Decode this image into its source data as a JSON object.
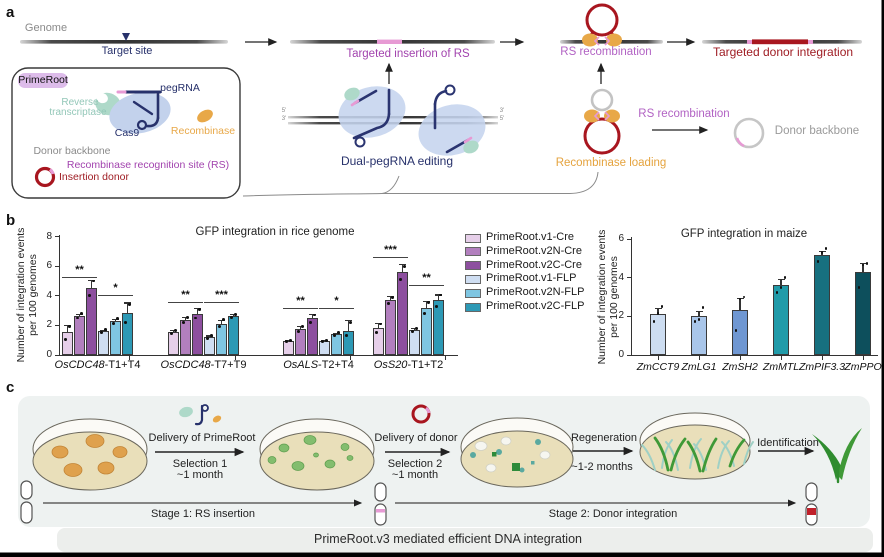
{
  "panels": {
    "a": "a",
    "b": "b",
    "c": "c"
  },
  "colors": {
    "purple": "#a243ae",
    "light_purple": "#b263c4",
    "dark_red": "#9f1d24",
    "orange": "#e5a33e",
    "teal_text": "#93c7b8",
    "navy": "#27316b",
    "gray": "#8a8a8a",
    "pink": "#e79ad4",
    "red_loop": "#a8161f"
  },
  "panel_a": {
    "genome_label": "Genome",
    "target_site": "Target site",
    "targeted_insertion": "Targeted insertion of RS",
    "dual_pegrna": "Dual-pegRNA editing",
    "rs_recombination_top": "RS recombination",
    "targeted_donor_integration": "Targeted  donor integration",
    "recombinase_loading": "Recombinase loading",
    "rs_recombination_mid": "RS recombination",
    "donor_backbone_right": "Donor backbone",
    "strand_ends": {
      "left_top": "5'",
      "left_bottom": "3'",
      "right_top": "3'",
      "right_bottom": "5'"
    },
    "primeroot_box": {
      "title": "PrimeRoot",
      "rt_line1": "Reverse",
      "rt_line2": "transcriptase",
      "pegrna": "pegRNA",
      "cas9": "Cas9",
      "recombinase": "Recombinase",
      "donor_backbone": "Donor backbone",
      "rs_site": "Recombinase recognition site (RS)",
      "insertion_donor": "Insertion donor"
    }
  },
  "chart_data": [
    {
      "type": "bar",
      "title": "GFP integration in rice genome",
      "ylabel": [
        "Number of integration events",
        "per 100 genomes"
      ],
      "ylim": [
        0,
        8
      ],
      "yticks": [
        0,
        2,
        4,
        6,
        8
      ],
      "grid": false,
      "legend_position": "right",
      "categories": [
        {
          "gene": "OsCDC48",
          "suffix": "-T1+T4"
        },
        {
          "gene": "OsCDC48",
          "suffix": "-T7+T9"
        },
        {
          "gene": "OsALS",
          "suffix": "-T2+T4"
        },
        {
          "gene": "OsS20",
          "suffix": "-T1+T2"
        }
      ],
      "series": [
        {
          "name": "PrimeRoot.v1-Cre",
          "color": "#e6cfe9",
          "values": [
            1.55,
            1.55,
            0.95,
            1.8
          ],
          "errors": [
            0.5,
            0.15,
            0.08,
            0.35
          ],
          "dots": [
            [
              1.05,
              1.95
            ],
            [
              1.45,
              1.65
            ],
            [
              0.9,
              1.0
            ],
            [
              1.5,
              2.1
            ]
          ]
        },
        {
          "name": "PrimeRoot.v2N-Cre",
          "color": "#b27fbe",
          "values": [
            2.65,
            2.35,
            1.75,
            3.7
          ],
          "errors": [
            0.15,
            0.2,
            0.2,
            0.3
          ],
          "dots": [
            [
              2.5,
              2.8
            ],
            [
              2.2,
              2.55
            ],
            [
              1.6,
              1.9
            ],
            [
              3.5,
              3.9
            ]
          ]
        },
        {
          "name": "PrimeRoot.v2C-Cre",
          "color": "#8d4f9f",
          "values": [
            4.5,
            2.75,
            2.5,
            5.6
          ],
          "errors": [
            0.55,
            0.45,
            0.3,
            0.55
          ],
          "dots": [
            [
              4.0,
              5.0
            ],
            [
              2.5,
              3.1
            ],
            [
              2.2,
              2.7
            ],
            [
              5.1,
              6.0
            ]
          ]
        },
        {
          "name": "PrimeRoot.v1-FLP",
          "color": "#cfdef2",
          "values": [
            1.6,
            1.2,
            0.95,
            1.7
          ],
          "errors": [
            0.1,
            0.12,
            0.08,
            0.15
          ],
          "dots": [
            [
              1.5,
              1.7
            ],
            [
              1.1,
              1.3
            ],
            [
              0.9,
              1.0
            ],
            [
              1.6,
              1.8
            ]
          ]
        },
        {
          "name": "PrimeRoot.v2N-FLP",
          "color": "#7fc6e2",
          "values": [
            2.3,
            2.1,
            1.4,
            3.2
          ],
          "errors": [
            0.15,
            0.25,
            0.1,
            0.45
          ],
          "dots": [
            [
              2.15,
              2.45
            ],
            [
              1.9,
              2.4
            ],
            [
              1.3,
              1.5
            ],
            [
              2.8,
              3.55
            ]
          ]
        },
        {
          "name": "PrimeRoot.v2C-FLP",
          "color": "#2d99b5",
          "values": [
            2.85,
            2.65,
            1.65,
            3.7
          ],
          "errors": [
            0.7,
            0.12,
            0.7,
            0.4
          ],
          "dots": [
            [
              2.2,
              3.4
            ],
            [
              2.55,
              2.75
            ],
            [
              1.3,
              2.2
            ],
            [
              3.3,
              4.05
            ]
          ]
        }
      ],
      "significance": [
        {
          "cat": 0,
          "half": 0,
          "label": "**",
          "y": 5.3
        },
        {
          "cat": 0,
          "half": 1,
          "label": "*",
          "y": 4.05
        },
        {
          "cat": 1,
          "half": 0,
          "label": "**",
          "y": 3.6
        },
        {
          "cat": 1,
          "half": 1,
          "label": "***",
          "y": 3.6
        },
        {
          "cat": 2,
          "half": 0,
          "label": "**",
          "y": 3.2
        },
        {
          "cat": 2,
          "half": 1,
          "label": "*",
          "y": 3.2
        },
        {
          "cat": 3,
          "half": 0,
          "label": "***",
          "y": 6.6
        },
        {
          "cat": 3,
          "half": 1,
          "label": "**",
          "y": 4.75
        }
      ]
    },
    {
      "type": "bar",
      "title": "GFP integration in maize",
      "ylabel": [
        "Number of integration events",
        "per 100 genomes"
      ],
      "ylim": [
        0,
        6
      ],
      "yticks": [
        0,
        2,
        4,
        6
      ],
      "grid": false,
      "categories": [
        "ZmCCT9",
        "ZmLG1",
        "ZmSH2",
        "ZmMTL",
        "ZmPIF3.3",
        "ZmPPO"
      ],
      "values": [
        2.1,
        2.0,
        2.35,
        3.6,
        5.15,
        4.3
      ],
      "errors": [
        0.35,
        0.3,
        0.6,
        0.35,
        0.25,
        0.45
      ],
      "dots": [
        [
          1.75,
          2.15,
          2.5
        ],
        [
          1.75,
          1.85,
          2.45
        ],
        [
          1.25,
          2.9,
          3.0
        ],
        [
          3.25,
          3.5,
          4.0
        ],
        [
          4.85,
          5.3,
          5.5
        ],
        [
          3.5,
          4.65,
          4.75
        ]
      ],
      "colors": [
        "#cdddf1",
        "#a9c6ea",
        "#6f97d2",
        "#219ba9",
        "#17707f",
        "#0d4f5c"
      ]
    }
  ],
  "panel_c": {
    "steps": [
      {
        "title": "Delivery of PrimeRoot",
        "sub1": "Selection 1",
        "sub2": "~1 month"
      },
      {
        "title": "Delivery of donor",
        "sub1": "Selection 2",
        "sub2": "~1 month"
      },
      {
        "title": "Regeneration",
        "sub1": "~1-2 months"
      },
      {
        "title": "Identification"
      }
    ],
    "stage1": "Stage 1: RS insertion",
    "stage2": "Stage 2: Donor integration",
    "footer": "PrimeRoot.v3 mediated efficient DNA integration"
  }
}
